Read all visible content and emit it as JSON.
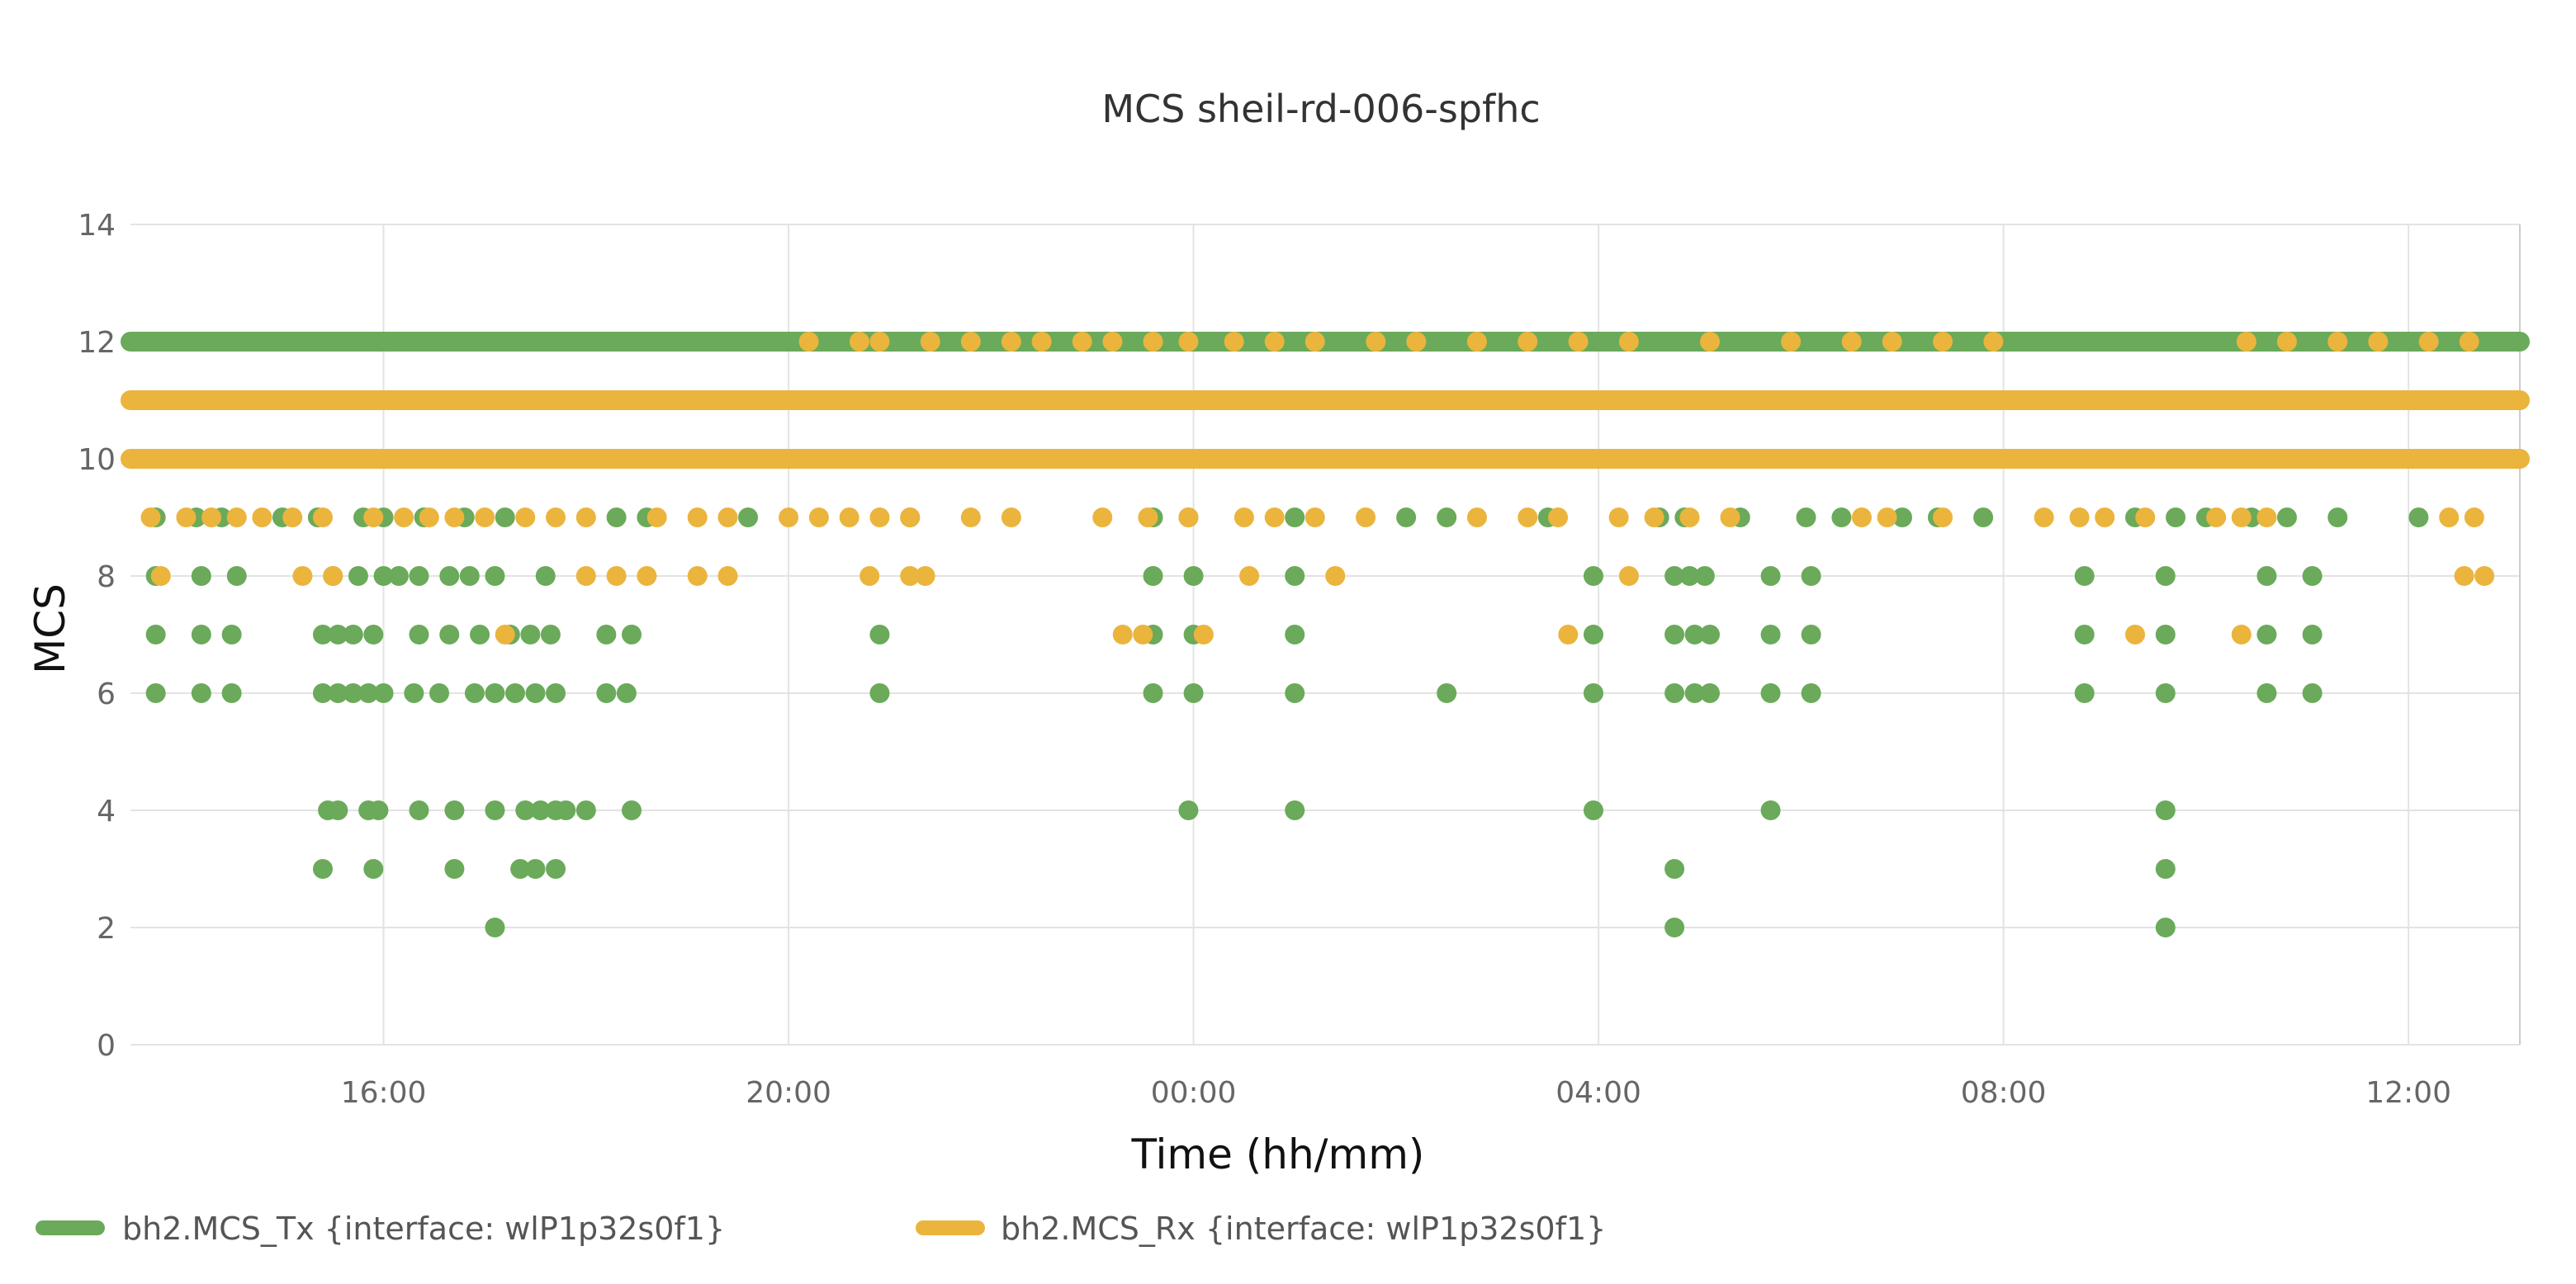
{
  "chart_data": {
    "type": "scatter",
    "title": "MCS sheil-rd-006-spfhc",
    "xlabel": "Time (hh/mm)",
    "ylabel": "MCS",
    "x_unit": "hours since 12:00 on day 1",
    "xlim": [
      1.5,
      25.1
    ],
    "ylim": [
      0,
      14
    ],
    "yticks": [
      0,
      2,
      4,
      6,
      8,
      10,
      12,
      14
    ],
    "xticks": [
      {
        "value": 4,
        "label": "16:00"
      },
      {
        "value": 8,
        "label": "20:00"
      },
      {
        "value": 12,
        "label": "00:00"
      },
      {
        "value": 16,
        "label": "04:00"
      },
      {
        "value": 20,
        "label": "08:00"
      },
      {
        "value": 24,
        "label": "12:00"
      }
    ],
    "grid": true,
    "legend_position": "bottom-left",
    "series": [
      {
        "name": "bh2.MCS_Tx {interface: wlP1p32s0f1}",
        "color": "#6aaa5a",
        "bands": [
          {
            "y": 12,
            "from": 1.5,
            "to": 25.1
          }
        ],
        "points": [
          [
            1.75,
            9
          ],
          [
            2.15,
            9
          ],
          [
            2.4,
            9
          ],
          [
            3.0,
            9
          ],
          [
            3.35,
            9
          ],
          [
            3.8,
            9
          ],
          [
            4.0,
            9
          ],
          [
            4.4,
            9
          ],
          [
            4.8,
            9
          ],
          [
            5.2,
            9
          ],
          [
            6.3,
            9
          ],
          [
            6.6,
            9
          ],
          [
            7.6,
            9
          ],
          [
            9.2,
            9
          ],
          [
            11.6,
            9
          ],
          [
            11.95,
            9
          ],
          [
            13.0,
            9
          ],
          [
            14.1,
            9
          ],
          [
            14.5,
            9
          ],
          [
            15.5,
            9
          ],
          [
            16.6,
            9
          ],
          [
            16.85,
            9
          ],
          [
            17.4,
            9
          ],
          [
            18.05,
            9
          ],
          [
            18.4,
            9
          ],
          [
            19.0,
            9
          ],
          [
            19.35,
            9
          ],
          [
            19.8,
            9
          ],
          [
            21.3,
            9
          ],
          [
            21.7,
            9
          ],
          [
            22.0,
            9
          ],
          [
            22.45,
            9
          ],
          [
            22.8,
            9
          ],
          [
            23.3,
            9
          ],
          [
            24.1,
            9
          ],
          [
            11.4,
            10
          ],
          [
            23.4,
            10
          ],
          [
            1.75,
            8
          ],
          [
            2.2,
            8
          ],
          [
            2.55,
            8
          ],
          [
            3.5,
            8
          ],
          [
            3.75,
            8
          ],
          [
            4.0,
            8
          ],
          [
            4.15,
            8
          ],
          [
            4.35,
            8
          ],
          [
            4.65,
            8
          ],
          [
            4.85,
            8
          ],
          [
            5.1,
            8
          ],
          [
            5.6,
            8
          ],
          [
            11.6,
            8
          ],
          [
            12.0,
            8
          ],
          [
            13.0,
            8
          ],
          [
            15.95,
            8
          ],
          [
            16.75,
            8
          ],
          [
            16.9,
            8
          ],
          [
            17.05,
            8
          ],
          [
            17.7,
            8
          ],
          [
            18.1,
            8
          ],
          [
            20.8,
            8
          ],
          [
            21.6,
            8
          ],
          [
            22.6,
            8
          ],
          [
            23.05,
            8
          ],
          [
            1.75,
            7
          ],
          [
            2.2,
            7
          ],
          [
            2.5,
            7
          ],
          [
            3.4,
            7
          ],
          [
            3.55,
            7
          ],
          [
            3.7,
            7
          ],
          [
            3.9,
            7
          ],
          [
            4.35,
            7
          ],
          [
            4.65,
            7
          ],
          [
            4.95,
            7
          ],
          [
            5.25,
            7
          ],
          [
            5.45,
            7
          ],
          [
            5.65,
            7
          ],
          [
            6.2,
            7
          ],
          [
            6.45,
            7
          ],
          [
            8.9,
            7
          ],
          [
            11.6,
            7
          ],
          [
            12.0,
            7
          ],
          [
            13.0,
            7
          ],
          [
            15.95,
            7
          ],
          [
            16.75,
            7
          ],
          [
            16.95,
            7
          ],
          [
            17.1,
            7
          ],
          [
            17.7,
            7
          ],
          [
            18.1,
            7
          ],
          [
            20.8,
            7
          ],
          [
            21.6,
            7
          ],
          [
            22.6,
            7
          ],
          [
            23.05,
            7
          ],
          [
            1.75,
            6
          ],
          [
            2.2,
            6
          ],
          [
            2.5,
            6
          ],
          [
            3.4,
            6
          ],
          [
            3.55,
            6
          ],
          [
            3.7,
            6
          ],
          [
            3.85,
            6
          ],
          [
            4.0,
            6
          ],
          [
            4.3,
            6
          ],
          [
            4.55,
            6
          ],
          [
            4.9,
            6
          ],
          [
            5.1,
            6
          ],
          [
            5.3,
            6
          ],
          [
            5.5,
            6
          ],
          [
            5.7,
            6
          ],
          [
            6.2,
            6
          ],
          [
            6.4,
            6
          ],
          [
            8.9,
            6
          ],
          [
            11.6,
            6
          ],
          [
            12.0,
            6
          ],
          [
            13.0,
            6
          ],
          [
            14.5,
            6
          ],
          [
            15.95,
            6
          ],
          [
            16.75,
            6
          ],
          [
            16.95,
            6
          ],
          [
            17.1,
            6
          ],
          [
            17.7,
            6
          ],
          [
            18.1,
            6
          ],
          [
            20.8,
            6
          ],
          [
            21.6,
            6
          ],
          [
            22.6,
            6
          ],
          [
            23.05,
            6
          ],
          [
            3.45,
            4
          ],
          [
            3.55,
            4
          ],
          [
            3.85,
            4
          ],
          [
            3.95,
            4
          ],
          [
            4.35,
            4
          ],
          [
            4.7,
            4
          ],
          [
            5.1,
            4
          ],
          [
            5.4,
            4
          ],
          [
            5.55,
            4
          ],
          [
            5.7,
            4
          ],
          [
            5.8,
            4
          ],
          [
            6.0,
            4
          ],
          [
            6.45,
            4
          ],
          [
            11.95,
            4
          ],
          [
            13.0,
            4
          ],
          [
            15.95,
            4
          ],
          [
            17.7,
            4
          ],
          [
            21.6,
            4
          ],
          [
            3.4,
            3
          ],
          [
            3.9,
            3
          ],
          [
            4.7,
            3
          ],
          [
            5.35,
            3
          ],
          [
            5.5,
            3
          ],
          [
            5.7,
            3
          ],
          [
            16.75,
            3
          ],
          [
            21.6,
            3
          ],
          [
            5.1,
            2
          ],
          [
            16.75,
            2
          ],
          [
            21.6,
            2
          ]
        ]
      },
      {
        "name": "bh2.MCS_Rx {interface: wlP1p32s0f1}",
        "color": "#ebb43c",
        "bands": [
          {
            "y": 11,
            "from": 1.5,
            "to": 25.1
          },
          {
            "y": 10,
            "from": 1.5,
            "to": 25.1
          }
        ],
        "points": [
          [
            8.2,
            12
          ],
          [
            8.7,
            12
          ],
          [
            8.9,
            12
          ],
          [
            9.4,
            12
          ],
          [
            9.8,
            12
          ],
          [
            10.2,
            12
          ],
          [
            10.5,
            12
          ],
          [
            10.9,
            12
          ],
          [
            11.2,
            12
          ],
          [
            11.6,
            12
          ],
          [
            11.95,
            12
          ],
          [
            12.4,
            12
          ],
          [
            12.8,
            12
          ],
          [
            13.2,
            12
          ],
          [
            13.8,
            12
          ],
          [
            14.2,
            12
          ],
          [
            14.8,
            12
          ],
          [
            15.3,
            12
          ],
          [
            15.8,
            12
          ],
          [
            16.3,
            12
          ],
          [
            17.1,
            12
          ],
          [
            17.9,
            12
          ],
          [
            18.5,
            12
          ],
          [
            18.9,
            12
          ],
          [
            19.4,
            12
          ],
          [
            19.9,
            12
          ],
          [
            22.4,
            12
          ],
          [
            22.8,
            12
          ],
          [
            23.3,
            12
          ],
          [
            23.7,
            12
          ],
          [
            24.2,
            12
          ],
          [
            24.6,
            12
          ],
          [
            1.7,
            9
          ],
          [
            2.05,
            9
          ],
          [
            2.3,
            9
          ],
          [
            2.55,
            9
          ],
          [
            2.8,
            9
          ],
          [
            3.1,
            9
          ],
          [
            3.4,
            9
          ],
          [
            3.9,
            9
          ],
          [
            4.2,
            9
          ],
          [
            4.45,
            9
          ],
          [
            4.7,
            9
          ],
          [
            5.0,
            9
          ],
          [
            5.4,
            9
          ],
          [
            5.7,
            9
          ],
          [
            6.0,
            9
          ],
          [
            6.7,
            9
          ],
          [
            7.1,
            9
          ],
          [
            7.4,
            9
          ],
          [
            8.0,
            9
          ],
          [
            8.3,
            9
          ],
          [
            8.6,
            9
          ],
          [
            8.9,
            9
          ],
          [
            9.2,
            9
          ],
          [
            9.8,
            9
          ],
          [
            10.2,
            9
          ],
          [
            11.1,
            9
          ],
          [
            11.55,
            9
          ],
          [
            11.95,
            9
          ],
          [
            12.5,
            9
          ],
          [
            12.8,
            9
          ],
          [
            13.2,
            9
          ],
          [
            13.7,
            9
          ],
          [
            14.8,
            9
          ],
          [
            15.3,
            9
          ],
          [
            15.6,
            9
          ],
          [
            16.2,
            9
          ],
          [
            16.55,
            9
          ],
          [
            16.9,
            9
          ],
          [
            17.3,
            9
          ],
          [
            18.6,
            9
          ],
          [
            18.85,
            9
          ],
          [
            19.4,
            9
          ],
          [
            20.4,
            9
          ],
          [
            20.75,
            9
          ],
          [
            21.0,
            9
          ],
          [
            21.4,
            9
          ],
          [
            22.1,
            9
          ],
          [
            22.35,
            9
          ],
          [
            22.6,
            9
          ],
          [
            24.4,
            9
          ],
          [
            24.65,
            9
          ],
          [
            1.8,
            8
          ],
          [
            3.2,
            8
          ],
          [
            3.5,
            8
          ],
          [
            6.0,
            8
          ],
          [
            6.3,
            8
          ],
          [
            6.6,
            8
          ],
          [
            7.1,
            8
          ],
          [
            7.4,
            8
          ],
          [
            8.8,
            8
          ],
          [
            9.2,
            8
          ],
          [
            9.35,
            8
          ],
          [
            12.55,
            8
          ],
          [
            13.4,
            8
          ],
          [
            16.3,
            8
          ],
          [
            24.55,
            8
          ],
          [
            24.75,
            8
          ],
          [
            5.2,
            7
          ],
          [
            11.3,
            7
          ],
          [
            11.5,
            7
          ],
          [
            12.1,
            7
          ],
          [
            15.7,
            7
          ],
          [
            21.3,
            7
          ],
          [
            22.35,
            7
          ]
        ]
      }
    ]
  }
}
